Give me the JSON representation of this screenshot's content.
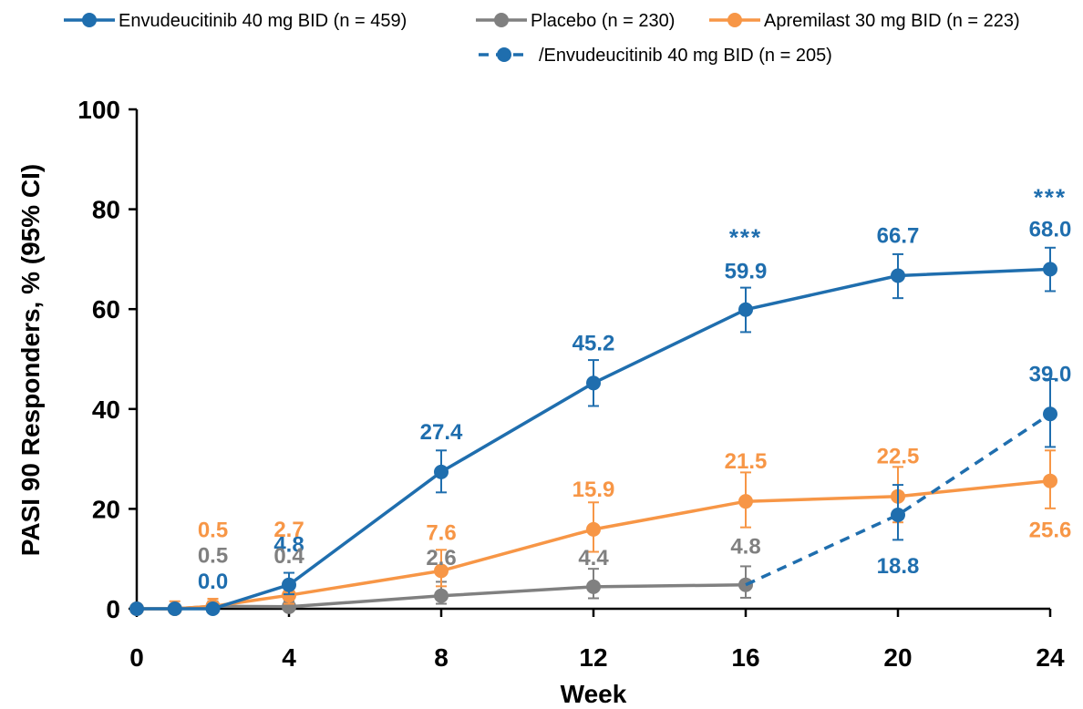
{
  "chart_data": {
    "type": "line",
    "title": "",
    "xlabel": "Week",
    "ylabel": "PASI 90 Responders, % (95% CI)",
    "xlim": [
      0,
      24
    ],
    "ylim": [
      0,
      100
    ],
    "x_ticks": [
      0,
      4,
      8,
      12,
      16,
      20,
      24
    ],
    "y_ticks": [
      0,
      20,
      40,
      60,
      80,
      100
    ],
    "grid": false,
    "legend_position": "top",
    "colors": {
      "envudeucitinib": "#1F6EAE",
      "placebo": "#808080",
      "apremilast": "#F79646",
      "axis": "#000000"
    },
    "legend": [
      {
        "label": "Envudeucitinib 40 mg BID (n = 459)",
        "series": 0
      },
      {
        "label": "Placebo (n = 230)",
        "series": 1
      },
      {
        "label": "Apremilast 30 mg BID (n = 223)",
        "series": 2
      },
      {
        "label": "/Envudeucitinib 40 mg BID (n = 205)",
        "series": 3
      }
    ],
    "series": [
      {
        "name": "Envudeucitinib 40 mg BID (n = 459)",
        "color": "#1F6EAE",
        "dashed": false,
        "x": [
          0,
          1,
          2,
          4,
          8,
          12,
          16,
          20,
          24
        ],
        "y": [
          0,
          0,
          0.0,
          4.8,
          27.4,
          45.2,
          59.9,
          66.7,
          68.0
        ],
        "ci_low": [
          0,
          0,
          0,
          2.9,
          23.3,
          40.6,
          55.4,
          62.2,
          63.6
        ],
        "ci_high": [
          0,
          0,
          0,
          7.2,
          31.7,
          49.8,
          64.3,
          71.0,
          72.3
        ]
      },
      {
        "name": "Placebo (n = 230)",
        "color": "#808080",
        "dashed": false,
        "x": [
          0,
          1,
          2,
          4,
          8,
          12,
          16
        ],
        "y": [
          0,
          0,
          0.5,
          0.4,
          2.6,
          4.4,
          4.8
        ],
        "ci_low": [
          0,
          0,
          0,
          0,
          1.0,
          2.1,
          2.2
        ],
        "ci_high": [
          0,
          0,
          1.5,
          1.5,
          5.4,
          8.0,
          8.5
        ]
      },
      {
        "name": "Apremilast 30 mg BID (n = 223)",
        "color": "#F79646",
        "dashed": false,
        "x": [
          0,
          1,
          2,
          4,
          8,
          12,
          16,
          20,
          24
        ],
        "y": [
          0,
          0,
          0.5,
          2.7,
          7.6,
          15.9,
          21.5,
          22.5,
          25.6
        ],
        "ci_low": [
          0,
          0,
          0,
          1.0,
          4.5,
          11.4,
          16.3,
          17.3,
          20.1
        ],
        "ci_high": [
          0,
          1.5,
          2.0,
          4.5,
          11.8,
          21.3,
          27.3,
          28.4,
          31.7
        ]
      },
      {
        "name": "/Envudeucitinib 40 mg BID (n = 205)",
        "color": "#1F6EAE",
        "dashed": true,
        "x": [
          16,
          20,
          24
        ],
        "y": [
          4.8,
          18.8,
          39.0
        ],
        "ci_low": [
          null,
          13.8,
          32.4
        ],
        "ci_high": [
          null,
          24.8,
          46.0
        ]
      }
    ],
    "data_labels": [
      {
        "text": "0.0",
        "x": 2,
        "y": 0.0,
        "series": 0,
        "dy": -22
      },
      {
        "text": "4.8",
        "x": 4,
        "y": 4.8,
        "series": 0,
        "dy": -36
      },
      {
        "text": "27.4",
        "x": 8,
        "y": 27.4,
        "series": 0,
        "dy": -36
      },
      {
        "text": "45.2",
        "x": 12,
        "y": 45.2,
        "series": 0,
        "dy": -36
      },
      {
        "text": "59.9",
        "x": 16,
        "y": 59.9,
        "series": 0,
        "dy": -34
      },
      {
        "text": "66.7",
        "x": 20,
        "y": 66.7,
        "series": 0,
        "dy": -36
      },
      {
        "text": "68.0",
        "x": 24,
        "y": 68.0,
        "series": 0,
        "dy": -36
      },
      {
        "text": "0.5",
        "x": 2,
        "y": 0.5,
        "series": 1,
        "dy": -48
      },
      {
        "text": "0.4",
        "x": 4,
        "y": 0.4,
        "series": 1,
        "dy": -48
      },
      {
        "text": "2.6",
        "x": 8,
        "y": 2.6,
        "series": 1,
        "dy": -34
      },
      {
        "text": "4.4",
        "x": 12,
        "y": 4.4,
        "series": 1,
        "dy": -24
      },
      {
        "text": "4.8",
        "x": 16,
        "y": 4.8,
        "series": 1,
        "dy": -34
      },
      {
        "text": "0.5",
        "x": 2,
        "y": 0.5,
        "series": 2,
        "dy": -76
      },
      {
        "text": "2.7",
        "x": 4,
        "y": 2.7,
        "series": 2,
        "dy": -64
      },
      {
        "text": "7.6",
        "x": 8,
        "y": 7.6,
        "series": 2,
        "dy": -34
      },
      {
        "text": "15.9",
        "x": 12,
        "y": 15.9,
        "series": 2,
        "dy": -36
      },
      {
        "text": "21.5",
        "x": 16,
        "y": 21.5,
        "series": 2,
        "dy": -36
      },
      {
        "text": "22.5",
        "x": 20,
        "y": 22.5,
        "series": 2,
        "dy": -36
      },
      {
        "text": "25.6",
        "x": 24,
        "y": 25.6,
        "series": 2,
        "dy": 62
      },
      {
        "text": "18.8",
        "x": 20,
        "y": 18.8,
        "series": 3,
        "dy": 64
      },
      {
        "text": "39.0",
        "x": 24,
        "y": 39.0,
        "series": 3,
        "dy": -36
      }
    ],
    "annotations": [
      {
        "text": "***",
        "x": 16,
        "y": 59.9,
        "dy": -70,
        "series": 0
      },
      {
        "text": "***",
        "x": 24,
        "y": 68.0,
        "dy": -70,
        "series": 0
      }
    ]
  }
}
